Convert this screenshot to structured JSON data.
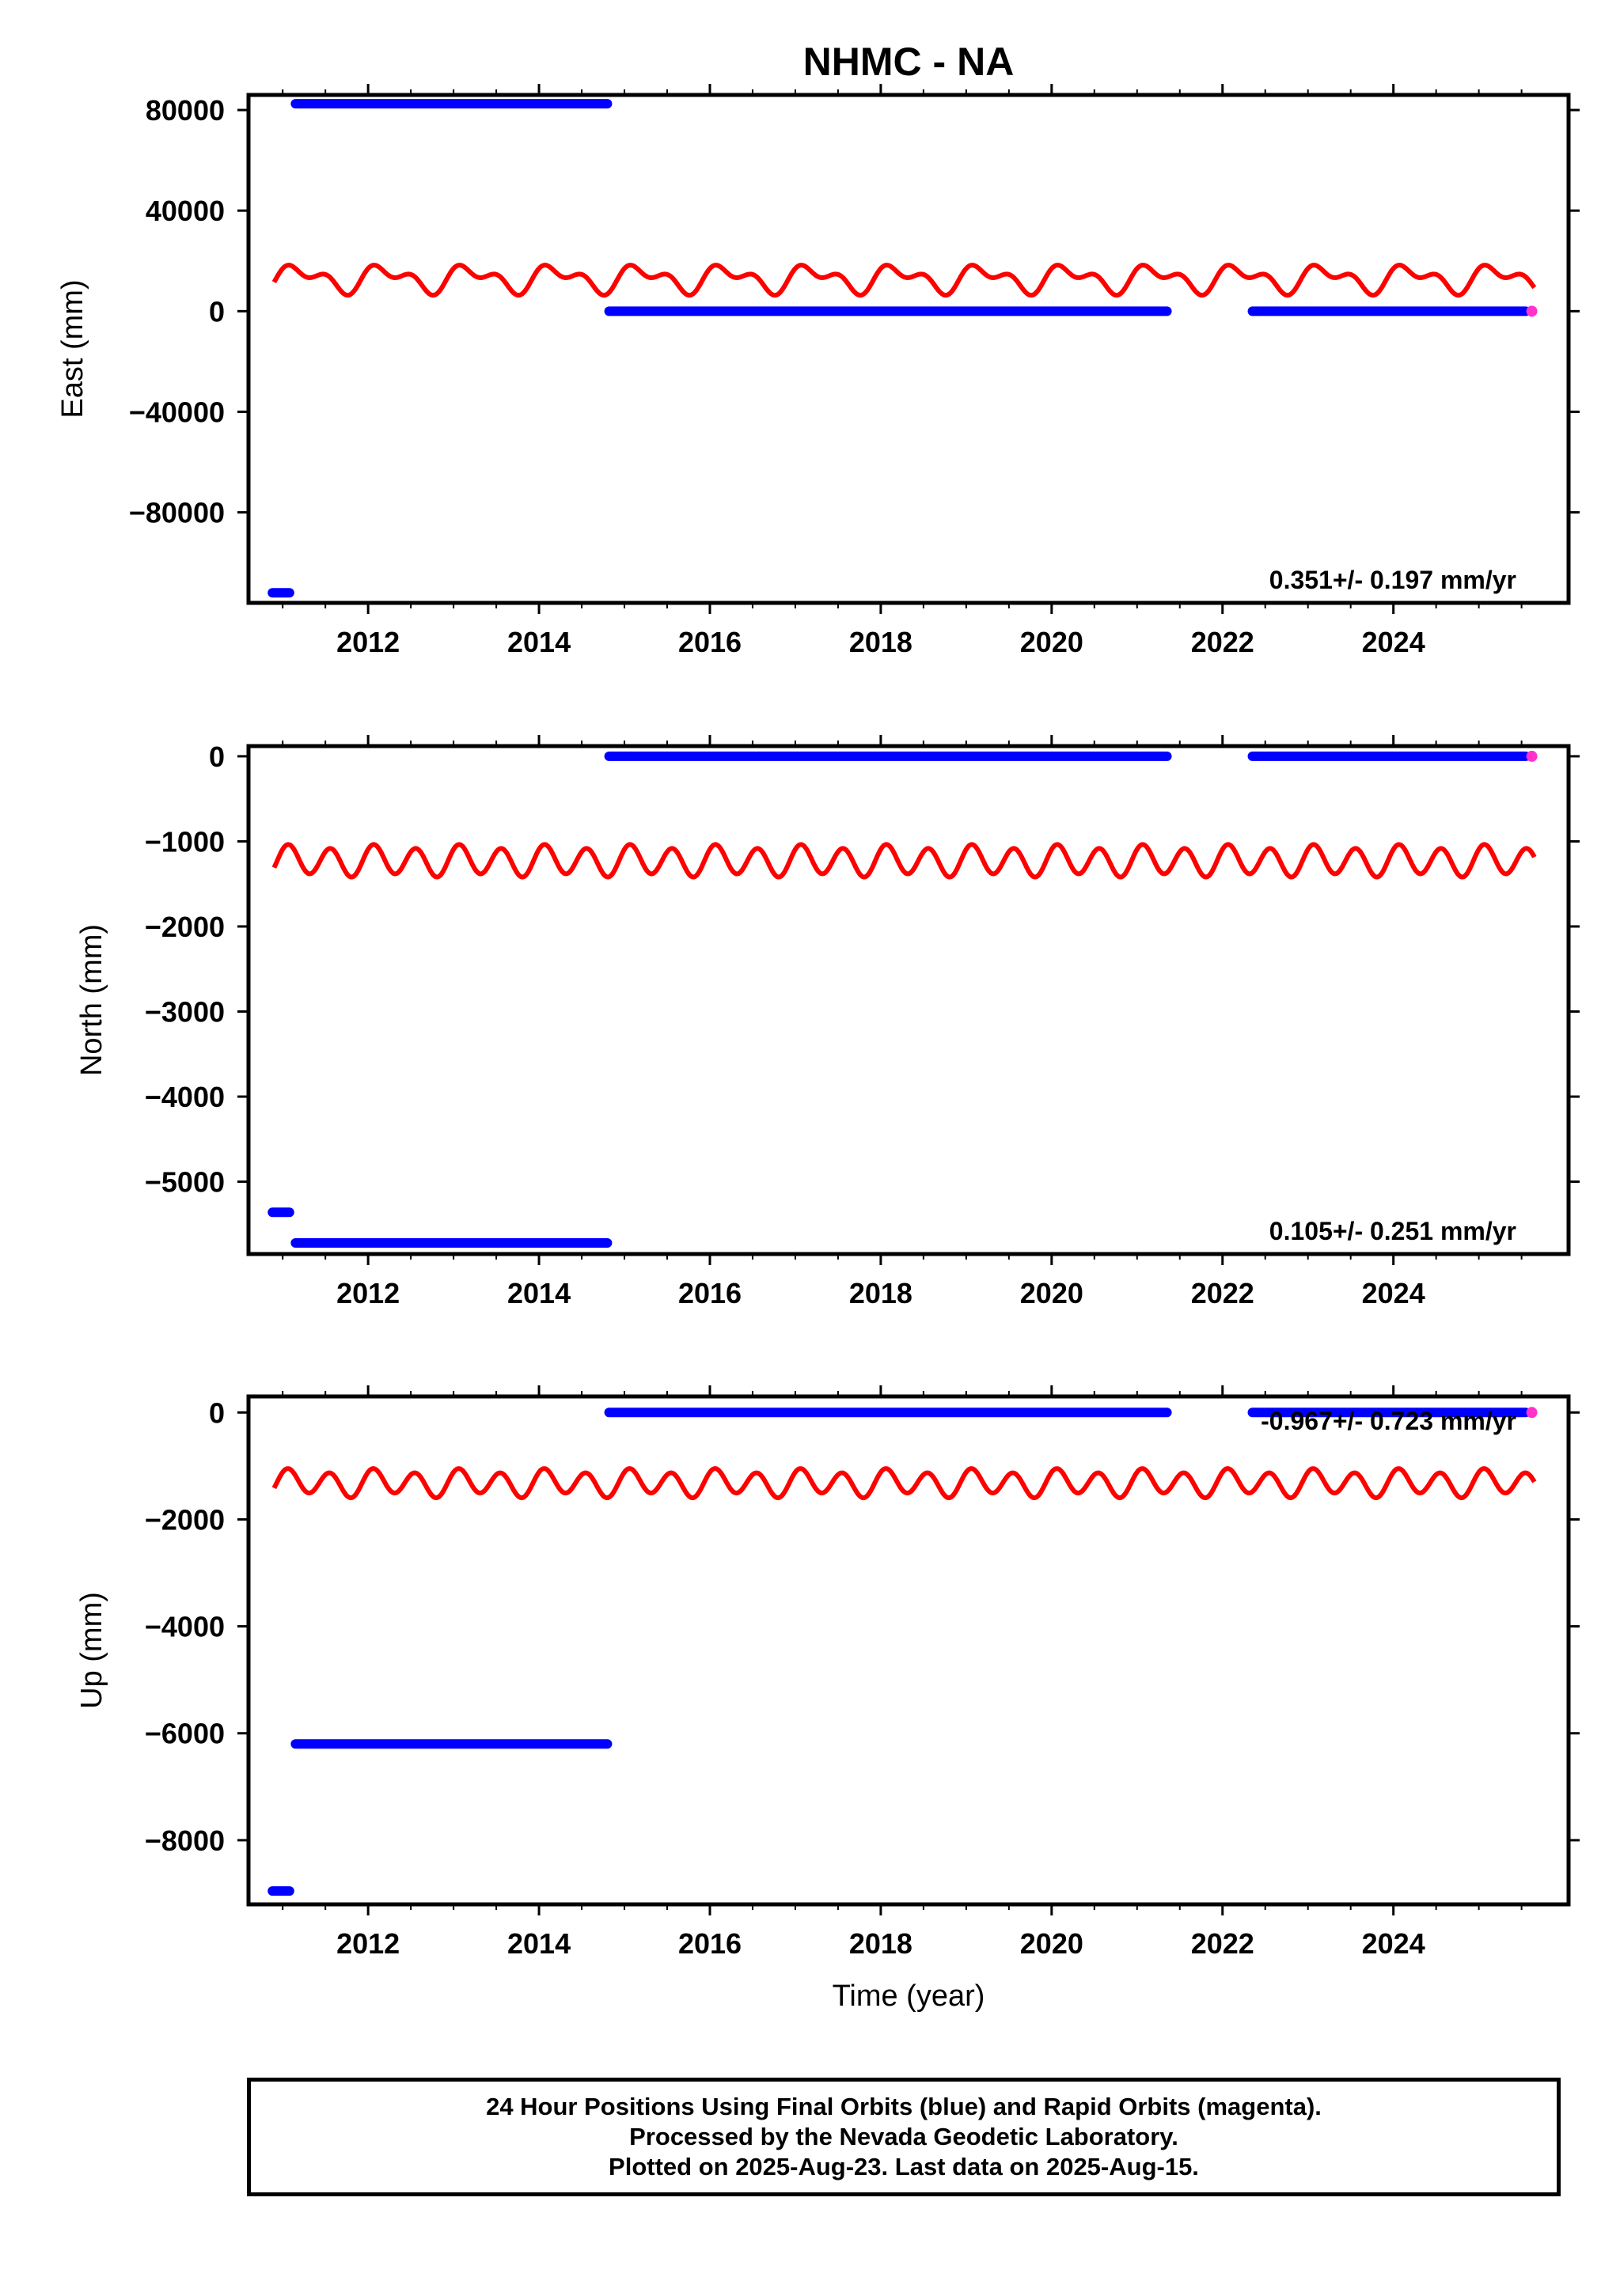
{
  "title": "NHMC - NA",
  "xlabel": "Time (year)",
  "colors": {
    "final": "#0000ff",
    "rapid": "#ff33cc",
    "model": "#ff0000"
  },
  "caption": [
    "24 Hour Positions Using Final Orbits (blue) and Rapid Orbits (magenta).",
    "Processed by the Nevada Geodetic Laboratory.",
    "Plotted on 2025-Aug-23. Last data on 2025-Aug-15."
  ],
  "chart_data": [
    {
      "type": "scatter",
      "ylabel": "East (mm)",
      "rate_text": "0.351+/- 0.197 mm/yr",
      "xlim": [
        2010.6,
        2026.05
      ],
      "ylim": [
        -116000,
        86000
      ],
      "yticks": [
        80000,
        40000,
        0,
        -40000,
        -80000
      ],
      "xticks": [
        2012,
        2014,
        2016,
        2018,
        2020,
        2022,
        2024
      ],
      "series": [
        {
          "segments": [
            {
              "x": [
                2010.88,
                2011.08
              ],
              "y": -112000
            },
            {
              "x": [
                2011.15,
                2014.8
              ],
              "y": 82500
            },
            {
              "x": [
                2014.82,
                2021.35
              ],
              "y": 0
            },
            {
              "x": [
                2022.35,
                2025.55
              ],
              "y": 0
            }
          ]
        },
        {
          "points": [
            {
              "x": 2025.62,
              "y": 0
            }
          ]
        }
      ],
      "model": {
        "mean": 13000,
        "amp1": 4000,
        "amp2": 3000,
        "phase1": 0.3,
        "phase2": 1.2
      }
    },
    {
      "type": "scatter",
      "ylabel": "North (mm)",
      "rate_text": "0.105+/- 0.251 mm/yr",
      "xlim": [
        2010.6,
        2026.05
      ],
      "ylim": [
        -5850,
        120
      ],
      "yticks": [
        0,
        -1000,
        -2000,
        -3000,
        -4000,
        -5000
      ],
      "xticks": [
        2012,
        2014,
        2016,
        2018,
        2020,
        2022,
        2024
      ],
      "series": [
        {
          "segments": [
            {
              "x": [
                2010.88,
                2011.08
              ],
              "y": -5360
            },
            {
              "x": [
                2011.15,
                2014.8
              ],
              "y": -5720
            },
            {
              "x": [
                2014.82,
                2021.35
              ],
              "y": 0
            },
            {
              "x": [
                2022.35,
                2025.55
              ],
              "y": 0
            }
          ]
        },
        {
          "points": [
            {
              "x": 2025.62,
              "y": 0
            }
          ]
        }
      ],
      "model": {
        "mean": -1230,
        "amp1": 30,
        "amp2": 170,
        "phase1": 0.5,
        "phase2": 0.8
      }
    },
    {
      "type": "scatter",
      "ylabel": "Up (mm)",
      "rate_text": "-0.967+/- 0.723 mm/yr",
      "xlim": [
        2010.6,
        2026.05
      ],
      "ylim": [
        -9200,
        300
      ],
      "yticks": [
        0,
        -2000,
        -4000,
        -6000,
        -8000
      ],
      "xticks": [
        2012,
        2014,
        2016,
        2018,
        2020,
        2022,
        2024
      ],
      "series": [
        {
          "segments": [
            {
              "x": [
                2010.88,
                2011.08
              ],
              "y": -8950
            },
            {
              "x": [
                2011.15,
                2014.8
              ],
              "y": -6200
            },
            {
              "x": [
                2014.82,
                2021.35
              ],
              "y": 0
            },
            {
              "x": [
                2022.35,
                2025.55
              ],
              "y": 0
            }
          ]
        },
        {
          "points": [
            {
              "x": 2025.62,
              "y": 0
            }
          ]
        }
      ],
      "model": {
        "mean": -1320,
        "amp1": 60,
        "amp2": 230,
        "phase1": 0.4,
        "phase2": 0.9
      }
    }
  ]
}
